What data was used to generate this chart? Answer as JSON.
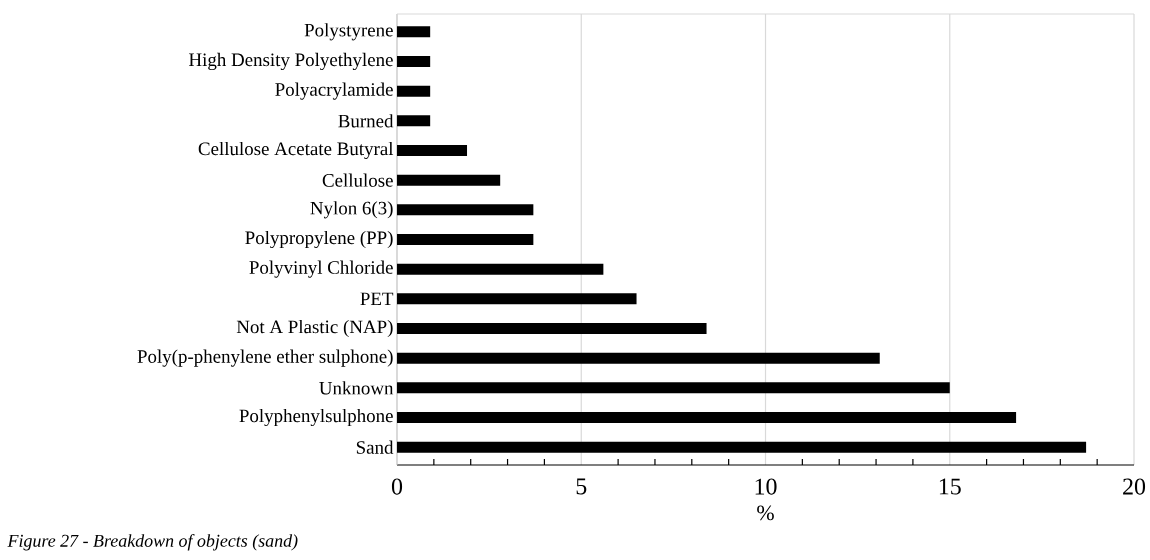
{
  "chart_data": {
    "type": "bar",
    "orientation": "horizontal",
    "xlabel": "%",
    "categories": [
      "Polystyrene",
      "High Density Polyethylene",
      "Polyacrylamide",
      "Burned",
      "Cellulose Acetate Butyral",
      "Cellulose",
      "Nylon 6(3)",
      "Polypropylene (PP)",
      "Polyvinyl Chloride",
      "PET",
      "Not A Plastic (NAP)",
      "Poly(p-phenylene ether sulphone)",
      "Unknown",
      "Polyphenylsulphone",
      "Sand"
    ],
    "values": [
      0.9,
      0.9,
      0.9,
      0.9,
      1.9,
      2.8,
      3.7,
      3.7,
      5.6,
      6.5,
      8.4,
      13.1,
      15.0,
      16.8,
      18.7
    ],
    "color": "#000000",
    "xlim": [
      0,
      20
    ],
    "xticks": [
      0,
      5,
      10,
      15,
      20
    ],
    "grid": "x",
    "annotations": [
      "*Figure 27 - Breakdown of objects (sand)*"
    ]
  }
}
